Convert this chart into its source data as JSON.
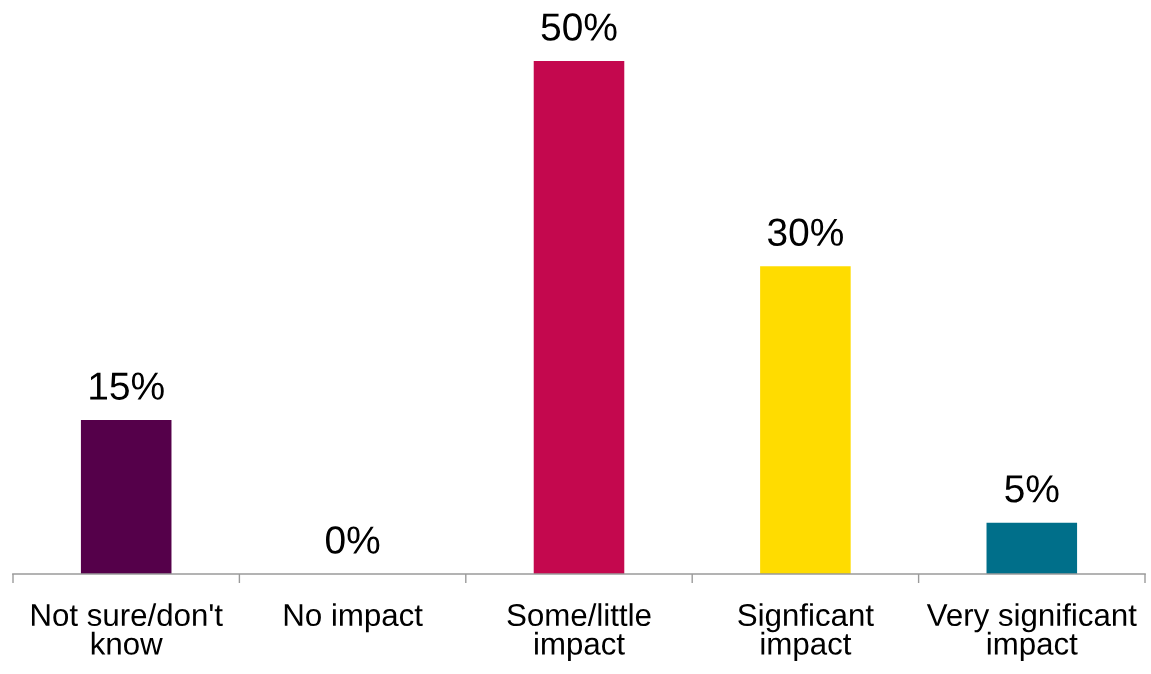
{
  "chart_data": {
    "type": "bar",
    "categories": [
      "Not sure/don't\nknow",
      "No impact",
      "Some/little\nimpact",
      "Signficant\nimpact",
      "Very significant\nimpact"
    ],
    "values": [
      15,
      0,
      50,
      30,
      5
    ],
    "colors": [
      "#55004a",
      null,
      "#c4084e",
      "#ffdc00",
      "#006f8a"
    ],
    "value_labels": [
      "15%",
      "0%",
      "50%",
      "30%",
      "5%"
    ],
    "tick_labels": "x"
  }
}
